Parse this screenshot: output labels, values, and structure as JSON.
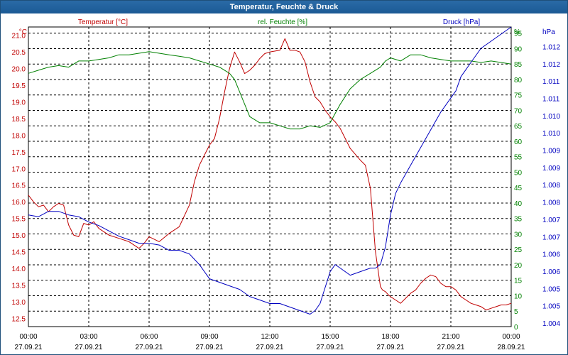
{
  "window": {
    "title": "Temperatur, Feuchte & Druck"
  },
  "chart_data": {
    "type": "line",
    "title": "Temperatur, Feuchte & Druck",
    "grid": true,
    "colors": {
      "temp": "#c00000",
      "hum": "#008000",
      "press": "#0000c0",
      "grid": "#000000"
    },
    "axes": {
      "temp": {
        "label": "Temperatur [°C]",
        "unit": "°C",
        "min": 12.25,
        "max": 21.25,
        "ticks": [
          "12.5",
          "13.0",
          "13.5",
          "14.0",
          "14.5",
          "15.0",
          "15.5",
          "16.0",
          "16.5",
          "17.0",
          "17.5",
          "18.0",
          "18.5",
          "19.0",
          "19.5",
          "20.0",
          "20.5",
          "21.0"
        ]
      },
      "hum": {
        "label": "rel. Feuchte [%]",
        "unit": "%",
        "min": 0,
        "max": 97,
        "ticks": [
          "0",
          "5",
          "10",
          "15",
          "20",
          "25",
          "30",
          "35",
          "40",
          "45",
          "50",
          "55",
          "60",
          "65",
          "70",
          "75",
          "80",
          "85",
          "90",
          "95"
        ]
      },
      "press": {
        "label": "Druck [hPa]",
        "unit": "hPa",
        "min": 1.00395,
        "max": 1.0124,
        "ticks": [
          "1.004",
          "1.005",
          "1.005",
          "1.006",
          "1.006",
          "1.007",
          "1.007",
          "1.008",
          "1.008",
          "1.009",
          "1.009",
          "1.010",
          "1.010",
          "1.011",
          "1.011",
          "1.012",
          "1.012"
        ]
      }
    },
    "x_ticks": [
      {
        "time": "00:00",
        "date": "27.09.21"
      },
      {
        "time": "03:00",
        "date": "27.09.21"
      },
      {
        "time": "06:00",
        "date": "27.09.21"
      },
      {
        "time": "09:00",
        "date": "27.09.21"
      },
      {
        "time": "12:00",
        "date": "27.09.21"
      },
      {
        "time": "15:00",
        "date": "27.09.21"
      },
      {
        "time": "18:00",
        "date": "27.09.21"
      },
      {
        "time": "21:00",
        "date": "27.09.21"
      },
      {
        "time": "00:00",
        "date": "28.09.21"
      }
    ],
    "series": [
      {
        "name": "Temperatur [°C]",
        "key": "temp",
        "x": [
          0,
          0.25,
          0.5,
          0.75,
          1.0,
          1.25,
          1.5,
          1.75,
          2.0,
          2.25,
          2.5,
          2.75,
          3.0,
          3.25,
          3.5,
          3.75,
          4.0,
          4.5,
          5.0,
          5.5,
          5.75,
          6.0,
          6.5,
          7.0,
          7.5,
          8.0,
          8.25,
          8.5,
          8.75,
          9.0,
          9.25,
          9.5,
          9.75,
          10.0,
          10.25,
          10.5,
          10.75,
          11.0,
          11.25,
          11.5,
          11.75,
          12.0,
          12.5,
          12.75,
          13.0,
          13.25,
          13.5,
          13.75,
          14.0,
          14.25,
          14.5,
          14.75,
          15.0,
          15.25,
          15.5,
          16.0,
          16.5,
          16.75,
          17.0,
          17.25,
          17.5,
          17.6,
          17.75,
          17.9,
          18.0,
          18.25,
          18.5,
          18.75,
          19.0,
          19.25,
          19.5,
          19.75,
          20.0,
          20.25,
          20.5,
          20.75,
          21.0,
          21.25,
          21.5,
          21.75,
          22.0,
          22.25,
          22.5,
          22.75,
          23.0,
          23.25,
          23.5,
          23.75,
          24.0
        ],
        "values": [
          16.2,
          16.0,
          15.85,
          15.9,
          15.7,
          15.85,
          15.95,
          15.9,
          15.3,
          15.0,
          14.95,
          15.35,
          15.3,
          15.4,
          15.2,
          15.1,
          15.0,
          14.9,
          14.8,
          14.6,
          14.75,
          14.95,
          14.8,
          15.05,
          15.25,
          15.9,
          16.6,
          17.1,
          17.4,
          17.7,
          17.9,
          18.5,
          19.3,
          20.0,
          20.5,
          20.2,
          19.85,
          19.95,
          20.1,
          20.3,
          20.45,
          20.5,
          20.55,
          20.9,
          20.55,
          20.55,
          20.5,
          20.2,
          19.6,
          19.15,
          19.0,
          18.75,
          18.55,
          18.4,
          18.2,
          17.6,
          17.25,
          17.1,
          16.4,
          14.5,
          13.45,
          13.35,
          13.3,
          13.2,
          13.15,
          13.05,
          12.95,
          13.1,
          13.25,
          13.35,
          13.55,
          13.7,
          13.8,
          13.75,
          13.55,
          13.45,
          13.45,
          13.35,
          13.15,
          13.05,
          12.95,
          12.9,
          12.85,
          12.75,
          12.8,
          12.85,
          12.9,
          12.9,
          12.95
        ]
      },
      {
        "name": "rel. Feuchte [%]",
        "key": "hum",
        "x": [
          0,
          0.5,
          1.0,
          1.5,
          2.0,
          2.5,
          3.0,
          3.5,
          4.0,
          4.5,
          5.0,
          5.5,
          6.0,
          6.5,
          7.0,
          7.5,
          8.0,
          8.5,
          9.0,
          9.5,
          10.0,
          10.25,
          10.5,
          10.75,
          11.0,
          11.5,
          12.0,
          12.5,
          13.0,
          13.5,
          14.0,
          14.5,
          15.0,
          15.25,
          15.5,
          16.0,
          16.5,
          17.0,
          17.5,
          17.75,
          18.0,
          18.5,
          19.0,
          19.5,
          20.0,
          20.5,
          21.0,
          21.5,
          22.0,
          22.5,
          23.0,
          23.5,
          24.0
        ],
        "values": [
          82,
          83,
          84,
          84.5,
          84,
          86,
          86,
          86.5,
          87,
          88,
          88,
          88.5,
          89,
          88.5,
          88,
          87.5,
          87,
          86,
          85,
          84,
          82,
          80,
          76,
          72,
          68,
          66,
          66,
          65,
          64,
          64,
          65,
          64.5,
          66,
          69,
          72,
          77,
          80,
          82,
          84,
          86,
          87,
          86,
          88,
          88,
          87,
          86.5,
          86,
          86,
          86,
          85.5,
          86,
          85.5,
          85
        ]
      },
      {
        "name": "Druck [hPa]",
        "key": "press",
        "x": [
          0,
          0.5,
          1.0,
          1.5,
          2.0,
          2.5,
          3.0,
          3.5,
          4.0,
          4.5,
          5.0,
          5.5,
          6.0,
          6.5,
          7.0,
          7.5,
          8.0,
          8.5,
          9.0,
          9.5,
          10.0,
          10.5,
          11.0,
          11.5,
          12.0,
          12.5,
          13.0,
          13.5,
          14.0,
          14.25,
          14.5,
          15.0,
          15.25,
          15.5,
          16.0,
          16.5,
          17.0,
          17.25,
          17.5,
          17.75,
          18.0,
          18.25,
          18.5,
          19.0,
          19.5,
          20.0,
          20.5,
          21.0,
          21.25,
          21.5,
          21.75,
          22.0,
          22.5,
          23.0,
          23.5,
          24.0
        ],
        "values": [
          1.0071,
          1.00705,
          1.0072,
          1.0072,
          1.0071,
          1.00705,
          1.0069,
          1.0068,
          1.00665,
          1.0065,
          1.0064,
          1.0063,
          1.0063,
          1.00625,
          1.0061,
          1.0061,
          1.006,
          1.0057,
          1.0053,
          1.0052,
          1.0051,
          1.005,
          1.0048,
          1.0047,
          1.0046,
          1.0046,
          1.0045,
          1.0044,
          1.0043,
          1.0044,
          1.0046,
          1.0055,
          1.0057,
          1.0056,
          1.0054,
          1.0055,
          1.0056,
          1.0056,
          1.0057,
          1.0062,
          1.0071,
          1.0077,
          1.008,
          1.0085,
          1.009,
          1.0095,
          1.01,
          1.0104,
          1.0106,
          1.011,
          1.0112,
          1.0114,
          1.0118,
          1.012,
          1.0122,
          1.0124
        ]
      }
    ]
  }
}
